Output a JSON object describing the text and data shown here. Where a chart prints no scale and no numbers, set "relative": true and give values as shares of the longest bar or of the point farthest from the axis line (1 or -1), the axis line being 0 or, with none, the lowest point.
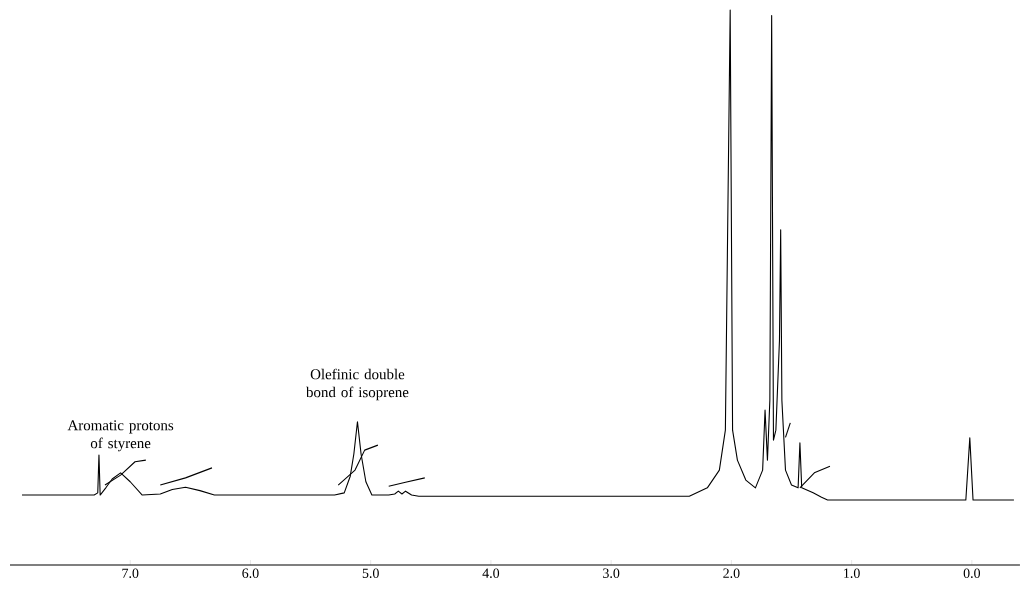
{
  "chart_data": {
    "type": "line",
    "relative": true,
    "xlim": [
      8.0,
      -0.4
    ],
    "xticks": [
      {
        "value": 7,
        "label": "7.0"
      },
      {
        "value": 6,
        "label": "6.0"
      },
      {
        "value": 5,
        "label": "5.0"
      },
      {
        "value": 4,
        "label": "4.0"
      },
      {
        "value": 3,
        "label": "3.0"
      },
      {
        "value": 2,
        "label": "2.0"
      },
      {
        "value": 1,
        "label": "1.0"
      },
      {
        "value": 0,
        "label": "0.0"
      }
    ],
    "series": [
      {
        "color": "#000000",
        "x": [
          7.9,
          7.3,
          7.27,
          7.26,
          7.25,
          7.2,
          7.15,
          7.08,
          7.0,
          6.9,
          6.75,
          6.65,
          6.54,
          6.42,
          6.3,
          5.3,
          5.22,
          5.17,
          5.14,
          5.11,
          5.08,
          5.04,
          4.99,
          4.85,
          4.8,
          4.77,
          4.74,
          4.71,
          4.66,
          4.6,
          2.35,
          2.2,
          2.1,
          2.05,
          2.01,
          1.99,
          1.95,
          1.88,
          1.8,
          1.74,
          1.72,
          1.7,
          1.68,
          1.665,
          1.65,
          1.63,
          1.61,
          1.6,
          1.59,
          1.58,
          1.55,
          1.5,
          1.445,
          1.43,
          1.415,
          1.32,
          1.25,
          1.2,
          0.05,
          0.017,
          -0.01,
          -0.35
        ],
        "values": [
          0.126,
          0.126,
          0.13,
          0.198,
          0.126,
          0.14,
          0.155,
          0.166,
          0.15,
          0.126,
          0.128,
          0.136,
          0.14,
          0.134,
          0.126,
          0.126,
          0.13,
          0.16,
          0.2,
          0.258,
          0.2,
          0.15,
          0.126,
          0.126,
          0.128,
          0.133,
          0.128,
          0.133,
          0.126,
          0.124,
          0.124,
          0.139,
          0.171,
          0.243,
          1.0,
          0.243,
          0.189,
          0.153,
          0.139,
          0.171,
          0.279,
          0.189,
          0.297,
          0.99,
          0.225,
          0.243,
          0.351,
          0.405,
          0.604,
          0.297,
          0.171,
          0.144,
          0.139,
          0.22,
          0.139,
          0.13,
          0.122,
          0.117,
          0.117,
          0.229,
          0.117,
          0.117
        ]
      },
      {
        "color": "#000000",
        "x": [
          7.21,
          7.08,
          6.96,
          6.87
        ],
        "values": [
          0.144,
          0.162,
          0.186,
          0.189
        ]
      },
      {
        "color": "#000000",
        "x": [
          6.75,
          6.54,
          6.32
        ],
        "values": [
          0.144,
          0.157,
          0.175
        ]
      },
      {
        "color": "#000000",
        "x": [
          5.27,
          5.13,
          5.05,
          4.94
        ],
        "values": [
          0.144,
          0.171,
          0.207,
          0.216
        ]
      },
      {
        "color": "#000000",
        "x": [
          4.85,
          4.71,
          4.55
        ],
        "values": [
          0.142,
          0.149,
          0.157
        ]
      },
      {
        "color": "#000000",
        "x": [
          1.55,
          1.51
        ],
        "values": [
          0.23,
          0.256
        ]
      },
      {
        "color": "#000000",
        "x": [
          1.43,
          1.31,
          1.18
        ],
        "values": [
          0.139,
          0.166,
          0.178
        ]
      }
    ],
    "annotations": [
      {
        "text": "Aromatic protons of styrene",
        "x": 7.08,
        "y": 0.166
      },
      {
        "text": "Olefinic double bond of isoprene",
        "x": 5.11,
        "y": 0.258
      }
    ]
  }
}
